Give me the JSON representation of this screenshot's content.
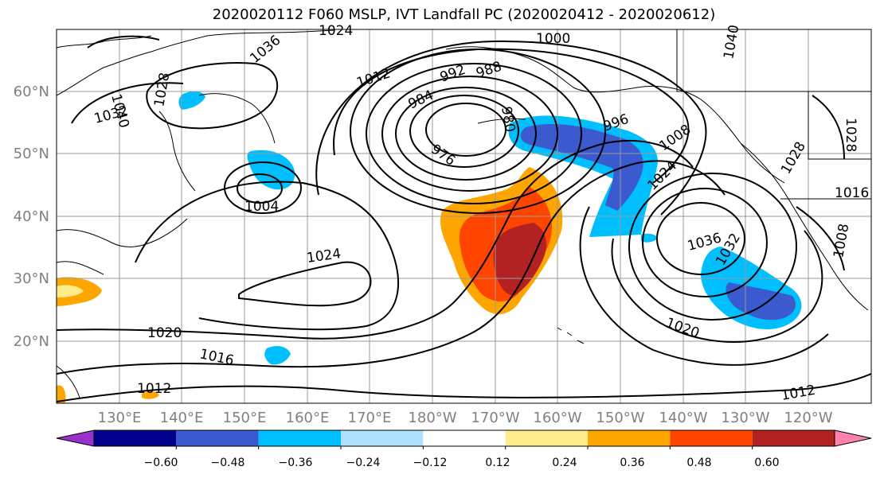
{
  "title": "2020020112 F060 MSLP, IVT Landfall PC (2020020412 - 2020020612)",
  "map": {
    "lat_labels": [
      "60°N",
      "50°N",
      "40°N",
      "30°N",
      "20°N"
    ],
    "lon_labels": [
      "130°E",
      "140°E",
      "150°E",
      "160°E",
      "170°E",
      "180°W",
      "170°W",
      "160°W",
      "150°W",
      "140°W",
      "130°W",
      "120°W"
    ],
    "isobar_labels": [
      "1000",
      "992",
      "988",
      "984",
      "980",
      "976",
      "996",
      "1008",
      "1012",
      "1024",
      "1004",
      "1036",
      "1032",
      "1028",
      "1040",
      "1020",
      "1016",
      "1012",
      "1012",
      "1024",
      "1036",
      "1032",
      "1020",
      "1028",
      "1016",
      "1008",
      "1028",
      "1040",
      "1024"
    ],
    "features": {
      "low_center_lat_lon": [
        52,
        -175
      ],
      "secondary_low_lat_lon": [
        44,
        152
      ],
      "high_center_lat_lon": [
        38,
        -137
      ],
      "subtropical_high_lat_lon": [
        30,
        172
      ]
    }
  },
  "colorbar": {
    "ticks": [
      "−0.60",
      "−0.48",
      "−0.36",
      "−0.24",
      "−0.12",
      "0.12",
      "0.24",
      "0.36",
      "0.48",
      "0.60"
    ],
    "colors": [
      "#9932cc",
      "#00008b",
      "#3a5acd",
      "#00bfff",
      "#b0e2ff",
      "#ffffff",
      "#ffec8b",
      "#ffa500",
      "#ff4500",
      "#b22222",
      "#ff82ab"
    ]
  }
}
